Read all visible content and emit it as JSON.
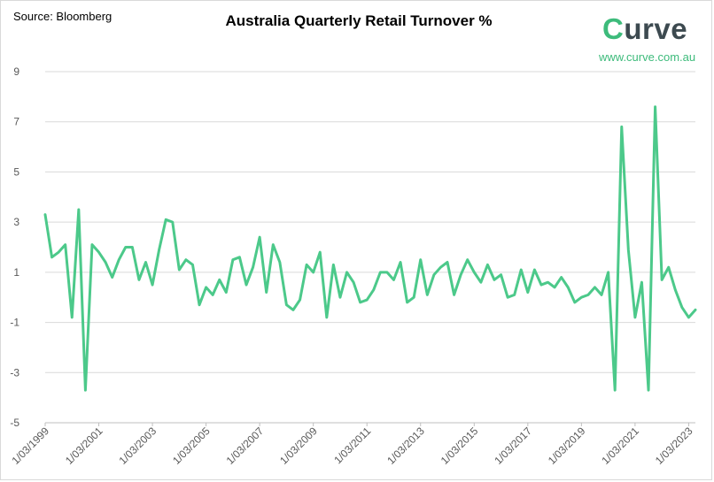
{
  "source": "Source: Bloomberg",
  "brand": {
    "name": "Curve",
    "website": "www.curve.com.au",
    "accent_color": "#3dbb7b",
    "dark_color": "#3d4a50"
  },
  "chart_data": {
    "type": "line",
    "title": "Australia Quarterly Retail Turnover %",
    "xlabel": "",
    "ylabel": "",
    "ylim": [
      -5,
      9
    ],
    "yticks": [
      9,
      7,
      5,
      3,
      1,
      -1,
      -3,
      -5
    ],
    "grid": true,
    "legend": "none",
    "line_color": "#4cc98a",
    "x_start": "1/03/1999",
    "x_frequency": "quarterly",
    "xtick_labels": [
      "1/03/1999",
      "1/03/2001",
      "1/03/2003",
      "1/03/2005",
      "1/03/2007",
      "1/03/2009",
      "1/03/2011",
      "1/03/2013",
      "1/03/2015",
      "1/03/2017",
      "1/03/2019",
      "1/03/2021",
      "1/03/2023"
    ],
    "series": [
      {
        "values": [
          3.3,
          1.6,
          1.8,
          2.1,
          -0.8,
          3.5,
          -3.7,
          2.1,
          1.8,
          1.4,
          0.8,
          1.5,
          2.0,
          2.0,
          0.7,
          1.4,
          0.5,
          1.9,
          3.1,
          3.0,
          1.1,
          1.5,
          1.3,
          -0.3,
          0.4,
          0.1,
          0.7,
          0.2,
          1.5,
          1.6,
          0.5,
          1.2,
          2.4,
          0.2,
          2.1,
          1.4,
          -0.3,
          -0.5,
          -0.1,
          1.3,
          1.0,
          1.8,
          -0.8,
          1.3,
          0.0,
          1.0,
          0.6,
          -0.2,
          -0.1,
          0.3,
          1.0,
          1.0,
          0.7,
          1.4,
          -0.2,
          0.0,
          1.5,
          0.1,
          0.9,
          1.2,
          1.4,
          0.1,
          0.9,
          1.5,
          1.0,
          0.6,
          1.3,
          0.7,
          0.9,
          0.0,
          0.1,
          1.1,
          0.2,
          1.1,
          0.5,
          0.6,
          0.4,
          0.8,
          0.4,
          -0.2,
          0.0,
          0.1,
          0.4,
          0.1,
          1.0,
          -3.7,
          6.8,
          1.9,
          -0.8,
          0.6,
          -3.7,
          7.6,
          0.7,
          1.2,
          0.3,
          -0.4,
          -0.8,
          -0.5
        ]
      }
    ]
  }
}
